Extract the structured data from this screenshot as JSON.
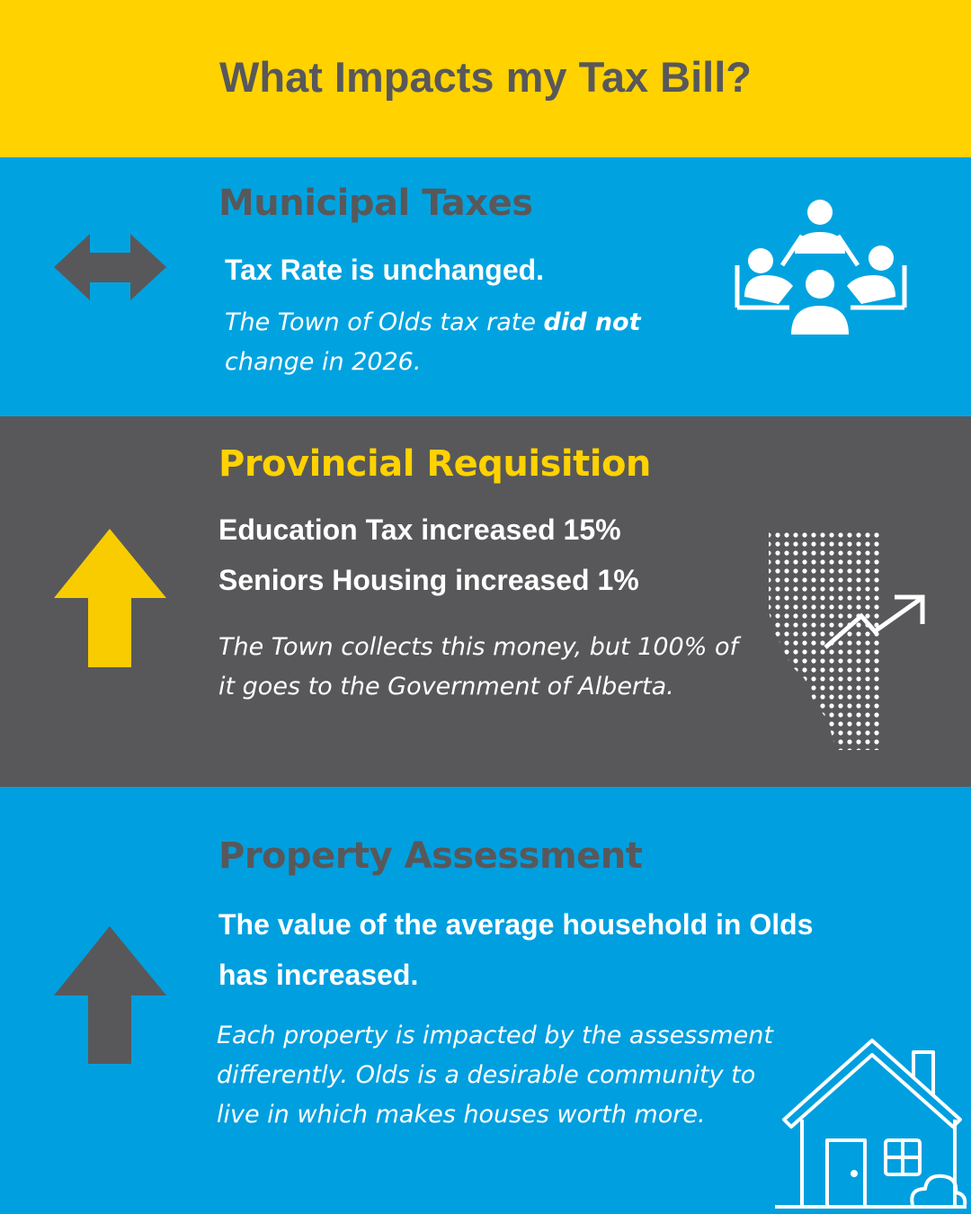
{
  "title": "What Impacts my Tax Bill?",
  "sections": [
    {
      "heading": "Municipal Taxes",
      "statement": [
        "Tax Rate is unchanged."
      ],
      "body": {
        "before": "The Town of Olds tax rate ",
        "emphasis": "did not",
        "after": " change in 2026."
      }
    },
    {
      "heading": "Provincial Requisition",
      "statement": [
        "Education Tax increased 15%",
        "Seniors Housing increased 1%"
      ],
      "body": {
        "text": "The Town collects this money, but 100% of it goes to the Government of Alberta."
      }
    },
    {
      "heading": "Property Assessment",
      "statement": [
        "The value of the average household in Olds has increased."
      ],
      "body": {
        "text": "Each property is impacted by the assessment differently. Olds is a desirable community to live in which makes houses worth more."
      }
    }
  ]
}
